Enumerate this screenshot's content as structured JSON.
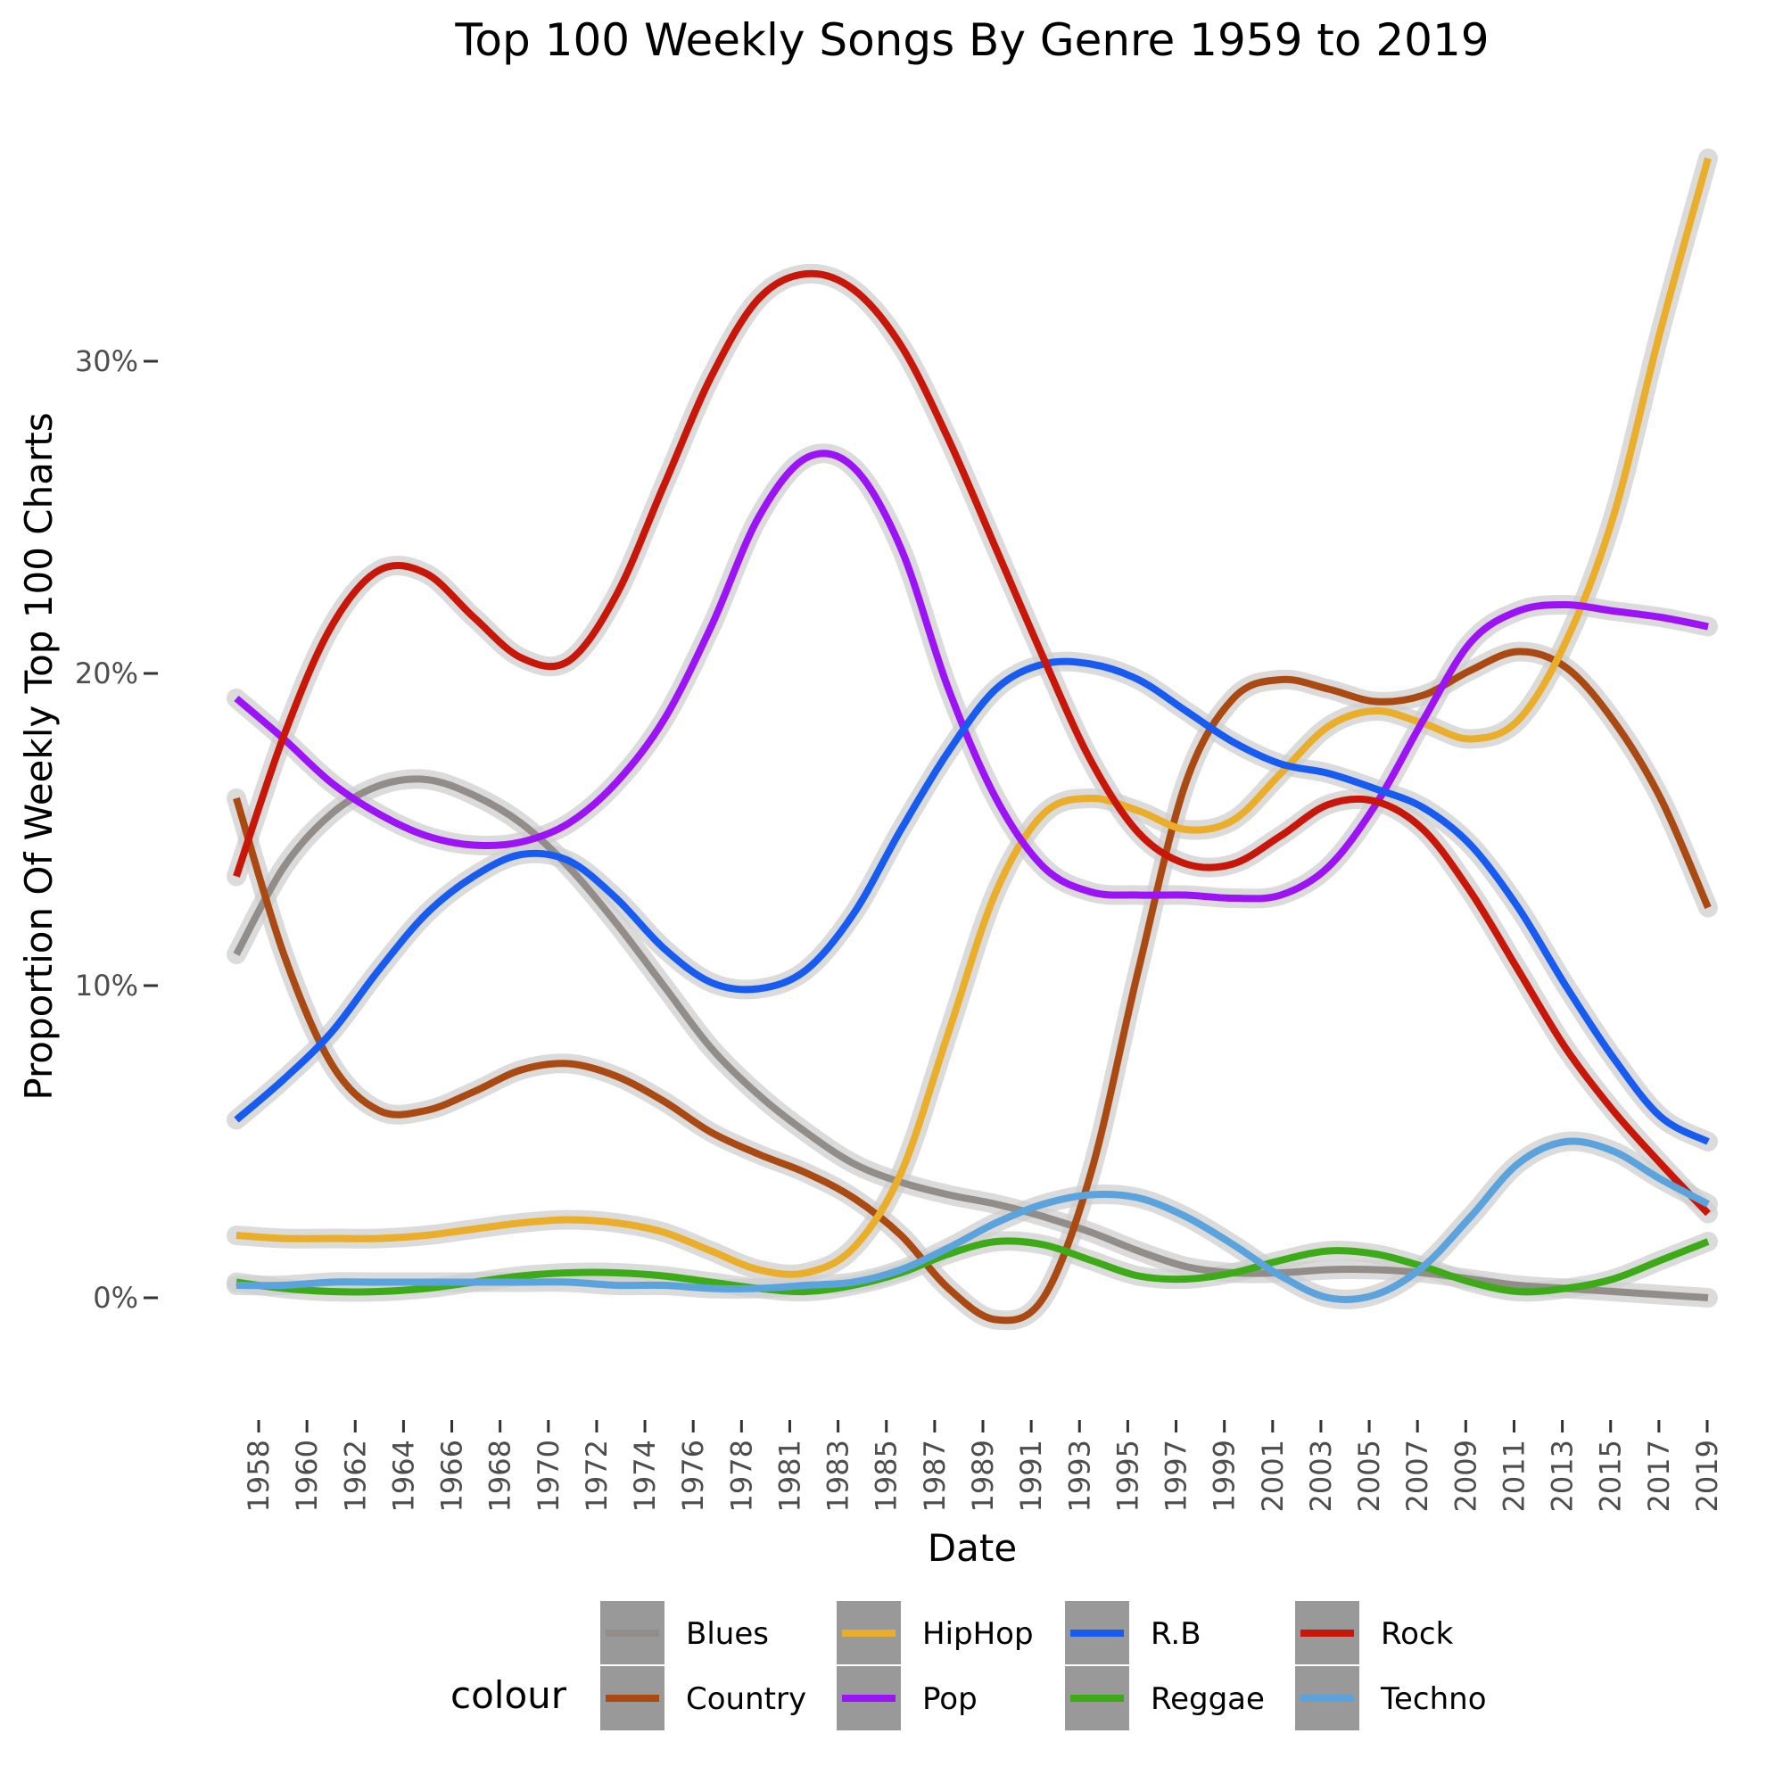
{
  "chart_data": {
    "type": "line",
    "title": "Top 100 Weekly Songs By Genre 1959 to 2019",
    "xlabel": "Date",
    "ylabel": "Proportion Of Weekly Top 100 Charts",
    "xlim": [
      1957,
      2019
    ],
    "ylim": [
      -3.0,
      37.0
    ],
    "x_ticks": [
      "1958",
      "1960",
      "1962",
      "1964",
      "1966",
      "1968",
      "1970",
      "1972",
      "1974",
      "1976",
      "1978",
      "1981",
      "1983",
      "1985",
      "1987",
      "1989",
      "1991",
      "1993",
      "1995",
      "1997",
      "1999",
      "2001",
      "2003",
      "2005",
      "2007",
      "2009",
      "2011",
      "2013",
      "2015",
      "2017",
      "2019"
    ],
    "y_ticks": [
      {
        "value": 0,
        "label": "0%"
      },
      {
        "value": 10,
        "label": "10%"
      },
      {
        "value": 20,
        "label": "20%"
      },
      {
        "value": 30,
        "label": "30%"
      }
    ],
    "legend": {
      "title": "colour",
      "position": "bottom"
    },
    "x": [
      1957,
      1959,
      1961,
      1963,
      1965,
      1967,
      1969,
      1971,
      1973,
      1975,
      1977,
      1979,
      1981,
      1983,
      1985,
      1987,
      1989,
      1991,
      1993,
      1995,
      1997,
      1999,
      2001,
      2003,
      2005,
      2007,
      2009,
      2011,
      2013,
      2015,
      2017,
      2019
    ],
    "series": [
      {
        "name": "Blues",
        "color": "#938d89",
        "values": [
          11.0,
          13.8,
          15.5,
          16.4,
          16.6,
          16.1,
          15.2,
          13.8,
          12.0,
          10.0,
          8.0,
          6.5,
          5.3,
          4.3,
          3.7,
          3.3,
          3.0,
          2.6,
          2.1,
          1.5,
          1.0,
          0.8,
          0.8,
          0.9,
          0.9,
          0.8,
          0.6,
          0.4,
          0.3,
          0.2,
          0.1,
          0.0
        ]
      },
      {
        "name": "Country",
        "color": "#aa4a12",
        "values": [
          16.0,
          11.0,
          7.5,
          6.0,
          6.0,
          6.6,
          7.3,
          7.5,
          7.1,
          6.3,
          5.3,
          4.6,
          4.0,
          3.2,
          2.0,
          0.3,
          -0.7,
          0.0,
          4.0,
          10.5,
          16.5,
          19.2,
          19.8,
          19.5,
          19.1,
          19.3,
          20.1,
          20.7,
          20.2,
          18.5,
          16.0,
          12.5
        ]
      },
      {
        "name": "HipHop",
        "color": "#eaae2b",
        "values": [
          2.0,
          1.9,
          1.9,
          1.9,
          2.0,
          2.2,
          2.4,
          2.5,
          2.4,
          2.1,
          1.5,
          0.9,
          0.8,
          1.6,
          4.0,
          8.5,
          13.0,
          15.5,
          16.0,
          15.6,
          15.0,
          15.3,
          16.8,
          18.3,
          18.8,
          18.4,
          17.9,
          18.5,
          21.0,
          25.0,
          31.0,
          36.5
        ]
      },
      {
        "name": "Pop",
        "color": "#9c13f5",
        "values": [
          19.2,
          17.9,
          16.5,
          15.5,
          14.8,
          14.5,
          14.6,
          15.2,
          16.5,
          18.5,
          21.5,
          25.0,
          26.9,
          26.6,
          24.0,
          19.5,
          16.0,
          13.8,
          13.0,
          12.9,
          12.9,
          12.8,
          12.9,
          13.8,
          15.8,
          18.5,
          21.0,
          22.0,
          22.2,
          22.0,
          21.8,
          21.5
        ]
      },
      {
        "name": "R.B",
        "color": "#185bf0",
        "values": [
          5.7,
          7.0,
          8.5,
          10.5,
          12.3,
          13.5,
          14.2,
          14.0,
          12.8,
          11.2,
          10.1,
          9.9,
          10.5,
          12.3,
          15.0,
          17.5,
          19.5,
          20.3,
          20.3,
          19.8,
          18.8,
          17.8,
          17.1,
          16.8,
          16.3,
          15.7,
          14.5,
          12.5,
          10.0,
          7.7,
          5.8,
          5.0
        ]
      },
      {
        "name": "Reggae",
        "color": "#3dab17",
        "values": [
          0.5,
          0.3,
          0.2,
          0.2,
          0.3,
          0.5,
          0.7,
          0.8,
          0.8,
          0.7,
          0.5,
          0.3,
          0.2,
          0.4,
          0.8,
          1.4,
          1.8,
          1.7,
          1.2,
          0.7,
          0.6,
          0.8,
          1.2,
          1.5,
          1.4,
          1.0,
          0.5,
          0.2,
          0.3,
          0.6,
          1.2,
          1.8
        ]
      },
      {
        "name": "Rock",
        "color": "#c81708",
        "values": [
          13.5,
          18.0,
          21.5,
          23.3,
          23.2,
          21.8,
          20.5,
          20.4,
          22.5,
          26.0,
          29.5,
          32.0,
          32.8,
          32.3,
          30.5,
          27.5,
          24.0,
          20.5,
          17.2,
          14.9,
          13.9,
          13.9,
          14.8,
          15.8,
          15.9,
          15.0,
          13.0,
          10.5,
          8.0,
          6.0,
          4.3,
          2.7
        ]
      },
      {
        "name": "Techno",
        "color": "#5ba3dc",
        "values": [
          0.4,
          0.4,
          0.5,
          0.5,
          0.5,
          0.5,
          0.5,
          0.5,
          0.4,
          0.4,
          0.3,
          0.3,
          0.4,
          0.5,
          0.9,
          1.6,
          2.4,
          3.0,
          3.3,
          3.2,
          2.6,
          1.7,
          0.7,
          0.0,
          0.1,
          1.0,
          2.6,
          4.3,
          5.0,
          4.7,
          3.8,
          3.0
        ]
      }
    ]
  }
}
